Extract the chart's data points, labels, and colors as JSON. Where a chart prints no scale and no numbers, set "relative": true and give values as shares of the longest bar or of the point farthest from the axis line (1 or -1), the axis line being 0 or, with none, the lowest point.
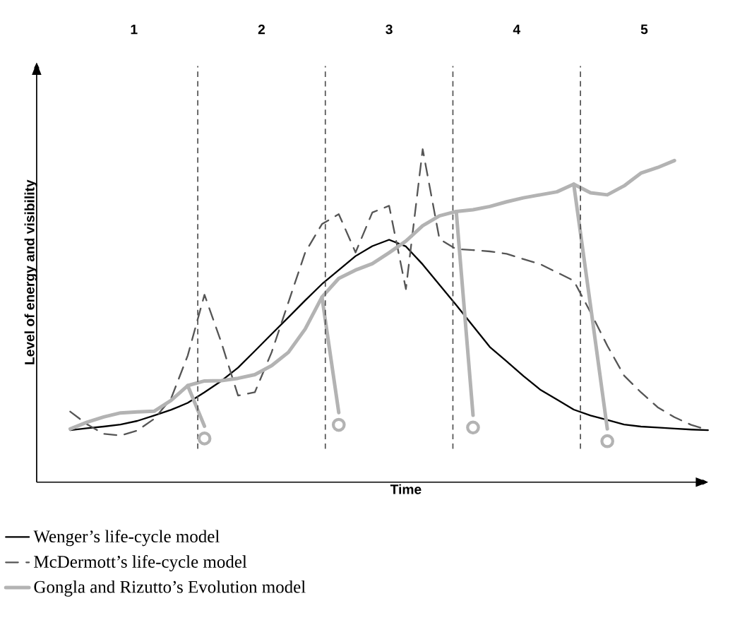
{
  "chart_data": {
    "type": "line",
    "relative": true,
    "xlabel": "Time",
    "ylabel": "Level of energy and visibility",
    "tick_labels": false,
    "legend": "bottom",
    "categories": [
      null,
      null,
      null,
      null,
      null,
      null,
      null,
      null,
      null,
      null,
      null,
      null,
      null,
      null,
      null,
      null,
      null,
      null,
      null,
      null,
      null,
      null,
      null,
      null,
      null,
      null,
      null,
      null,
      null,
      null,
      null,
      null,
      null,
      null,
      null,
      null,
      null,
      null,
      null
    ],
    "annotations": [
      "1",
      "2",
      "3",
      "4",
      "5"
    ],
    "series": [
      {
        "name": "Wenger’s life-cycle model",
        "color": "#000000",
        "line_style": "solid",
        "values": [
          0.156,
          0.162,
          0.167,
          0.173,
          0.184,
          0.2,
          0.217,
          0.238,
          0.27,
          0.304,
          0.344,
          0.394,
          0.445,
          0.495,
          0.546,
          0.595,
          0.637,
          0.679,
          0.709,
          0.728,
          0.708,
          0.654,
          0.593,
          0.532,
          0.469,
          0.406,
          0.363,
          0.319,
          0.278,
          0.248,
          0.218,
          0.2,
          0.187,
          0.173,
          0.167,
          0.164,
          0.161,
          0.158,
          0.156
        ]
      },
      {
        "name": "McDermott’s life-cycle model",
        "color": "#555555",
        "line_style": "dashed",
        "values": [
          0.212,
          0.174,
          0.145,
          0.14,
          0.155,
          0.19,
          0.25,
          0.38,
          0.563,
          0.42,
          0.26,
          0.27,
          0.39,
          0.54,
          0.69,
          0.775,
          0.805,
          0.69,
          0.81,
          0.83,
          0.58,
          1.0,
          0.73,
          0.7,
          0.697,
          0.693,
          0.686,
          0.67,
          0.655,
          0.63,
          0.605,
          0.51,
          0.41,
          0.32,
          0.27,
          0.225,
          0.195,
          0.172,
          0.157
        ]
      },
      {
        "name": "Gongla and Rizutto’s Evolution model",
        "color": "#b3b3b3",
        "line_style": "solid",
        "values": [
          0.16,
          0.18,
          0.196,
          0.208,
          0.211,
          0.213,
          0.245,
          0.29,
          0.304,
          0.305,
          0.312,
          0.323,
          0.35,
          0.39,
          0.46,
          0.556,
          0.612,
          0.637,
          0.656,
          0.689,
          0.724,
          0.77,
          0.8,
          0.813,
          0.818,
          0.828,
          0.842,
          0.854,
          0.863,
          0.872,
          0.895,
          0.869,
          0.863,
          0.89,
          0.928,
          0.945,
          0.966,
          null,
          null
        ]
      },
      {
        "color": "#b3b3b3",
        "line_style": "solid",
        "values": [
          null,
          null,
          null,
          null,
          null,
          null,
          null,
          0.29,
          0.168,
          null,
          null,
          null,
          null,
          null,
          null,
          0.556,
          0.209,
          null,
          null,
          null,
          null,
          null,
          null,
          0.813,
          0.201,
          null,
          null,
          null,
          null,
          null,
          0.895,
          0.53,
          0.16,
          null,
          null,
          null,
          null,
          null,
          null
        ]
      }
    ]
  }
}
